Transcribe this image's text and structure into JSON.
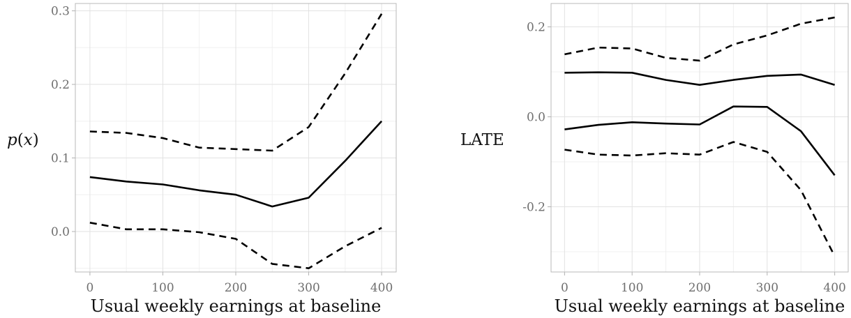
{
  "chart_data": [
    {
      "type": "line",
      "xlabel": "Usual weekly earnings at baseline",
      "ylabel": "p(x)",
      "x": [
        0,
        50,
        100,
        150,
        200,
        250,
        300,
        350,
        400
      ],
      "xlim": [
        -20,
        420
      ],
      "ylim": [
        -0.055,
        0.31
      ],
      "xticks": [
        0,
        100,
        200,
        300,
        400
      ],
      "yticks": [
        0.0,
        0.1,
        0.2,
        0.3
      ],
      "ytick_labels": [
        "0.0",
        "0.1",
        "0.2",
        "0.3"
      ],
      "grid": true,
      "series": [
        {
          "style": "solid",
          "color": "#000000",
          "values": [
            0.074,
            0.068,
            0.064,
            0.056,
            0.05,
            0.034,
            0.046,
            0.096,
            0.15
          ]
        },
        {
          "style": "dashed",
          "color": "#000000",
          "values": [
            0.136,
            0.134,
            0.127,
            0.114,
            0.112,
            0.11,
            0.142,
            0.215,
            0.296
          ]
        },
        {
          "style": "dashed",
          "color": "#000000",
          "values": [
            0.012,
            0.003,
            0.003,
            -0.001,
            -0.01,
            -0.044,
            -0.05,
            -0.02,
            0.005
          ]
        }
      ]
    },
    {
      "type": "line",
      "xlabel": "Usual weekly earnings at baseline",
      "ylabel": "LATE",
      "x": [
        0,
        50,
        100,
        150,
        200,
        250,
        300,
        350,
        400
      ],
      "xlim": [
        -20,
        420
      ],
      "ylim": [
        -0.345,
        0.252
      ],
      "xticks": [
        0,
        100,
        200,
        300,
        400
      ],
      "yticks": [
        -0.2,
        0.0,
        0.2
      ],
      "ytick_labels": [
        "-0.2",
        "0.0",
        "0.2"
      ],
      "grid": true,
      "series": [
        {
          "style": "solid",
          "color": "#000000",
          "values": [
            0.098,
            0.099,
            0.098,
            0.082,
            0.071,
            0.082,
            0.091,
            0.094,
            0.071
          ]
        },
        {
          "style": "solid",
          "color": "#000000",
          "values": [
            -0.028,
            -0.018,
            -0.012,
            -0.015,
            -0.017,
            0.023,
            0.022,
            -0.032,
            -0.13
          ]
        },
        {
          "style": "dashed",
          "color": "#000000",
          "values": [
            0.139,
            0.154,
            0.152,
            0.131,
            0.125,
            0.161,
            0.181,
            0.207,
            0.221
          ]
        },
        {
          "style": "dashed",
          "color": "#000000",
          "values": [
            -0.073,
            -0.084,
            -0.086,
            -0.081,
            -0.084,
            -0.056,
            -0.078,
            -0.163,
            -0.31
          ]
        }
      ]
    }
  ]
}
